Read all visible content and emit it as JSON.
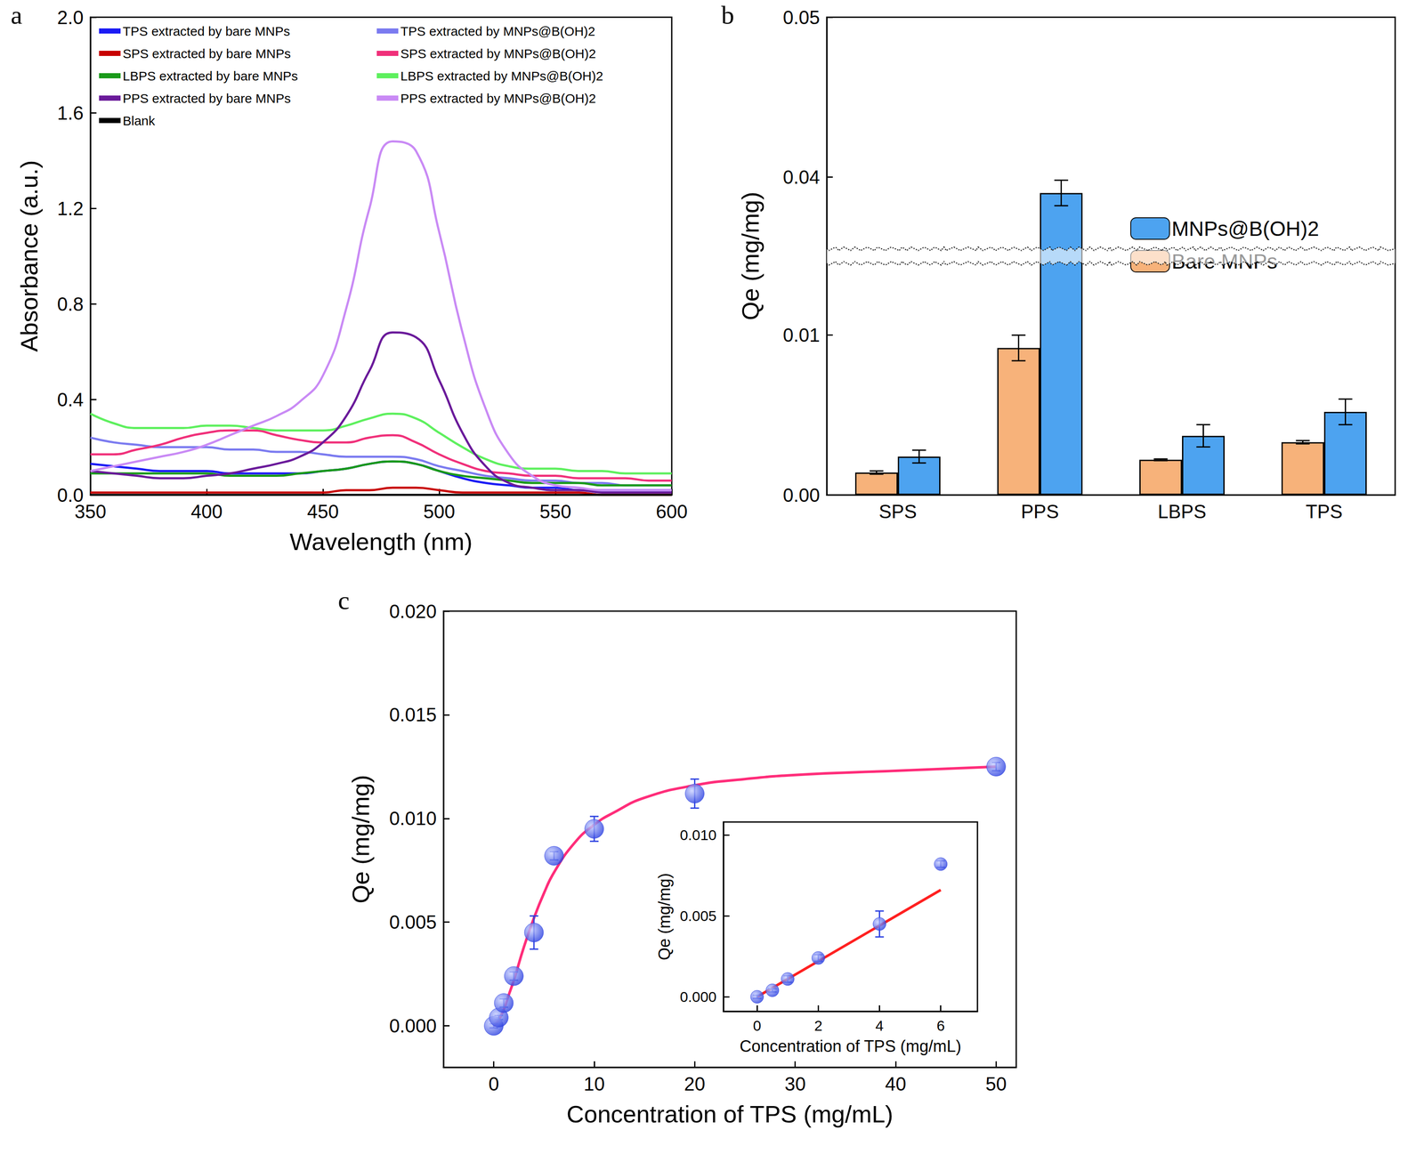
{
  "chart_data": [
    {
      "type": "line",
      "title": "a",
      "xlabel": "Wavelength (nm)",
      "ylabel": "Absorbance (a.u.)",
      "xlim": [
        350,
        600
      ],
      "xticks": [
        350,
        400,
        450,
        500,
        550,
        600
      ],
      "ylim": [
        0,
        2
      ],
      "yticks": [
        {
          "value": 0,
          "label": "0.0"
        },
        {
          "value": 0.4,
          "label": "0.4"
        },
        {
          "value": 0.8,
          "label": "0.8"
        },
        {
          "value": 1.2,
          "label": "1.2"
        },
        {
          "value": 1.6,
          "label": "1.6"
        },
        {
          "value": 2,
          "label": "2.0"
        }
      ],
      "legend": "upper left",
      "grid": false,
      "x": [
        350,
        360,
        370,
        380,
        390,
        400,
        410,
        420,
        430,
        440,
        450,
        460,
        470,
        480,
        490,
        500,
        510,
        520,
        530,
        540,
        550,
        560,
        570,
        580,
        590,
        600
      ],
      "series": [
        {
          "name": "TPS extracted by bare MNPs",
          "color": "#1b1bf5",
          "values": [
            0.13,
            0.12,
            0.11,
            0.1,
            0.1,
            0.1,
            0.09,
            0.09,
            0.09,
            0.09,
            0.1,
            0.11,
            0.13,
            0.14,
            0.13,
            0.1,
            0.07,
            0.05,
            0.04,
            0.03,
            0.03,
            0.02,
            0.02,
            0.02,
            0.02,
            0.02
          ]
        },
        {
          "name": "TPS extracted by MNPs@B(OH)2",
          "color": "#7b7bf0",
          "values": [
            0.24,
            0.22,
            0.21,
            0.2,
            0.2,
            0.2,
            0.19,
            0.19,
            0.18,
            0.18,
            0.17,
            0.16,
            0.16,
            0.16,
            0.15,
            0.12,
            0.1,
            0.08,
            0.07,
            0.06,
            0.06,
            0.05,
            0.05,
            0.04,
            0.04,
            0.04
          ]
        },
        {
          "name": "SPS extracted by bare MNPs",
          "color": "#c80000",
          "values": [
            0.01,
            0.01,
            0.01,
            0.01,
            0.01,
            0.01,
            0.01,
            0.01,
            0.01,
            0.01,
            0.01,
            0.02,
            0.02,
            0.03,
            0.03,
            0.02,
            0.01,
            0.01,
            0.01,
            0.01,
            0.01,
            0.01,
            0,
            0,
            0,
            0
          ]
        },
        {
          "name": "SPS extracted by MNPs@B(OH)2",
          "color": "#f0307a",
          "values": [
            0.17,
            0.17,
            0.19,
            0.21,
            0.24,
            0.26,
            0.27,
            0.27,
            0.25,
            0.23,
            0.22,
            0.22,
            0.24,
            0.25,
            0.22,
            0.17,
            0.13,
            0.1,
            0.09,
            0.08,
            0.08,
            0.07,
            0.07,
            0.07,
            0.06,
            0.06
          ]
        },
        {
          "name": "LBPS extracted by bare MNPs",
          "color": "#1a9a1a",
          "values": [
            0.09,
            0.09,
            0.09,
            0.09,
            0.09,
            0.09,
            0.08,
            0.08,
            0.08,
            0.09,
            0.1,
            0.11,
            0.13,
            0.14,
            0.13,
            0.1,
            0.08,
            0.07,
            0.06,
            0.05,
            0.05,
            0.05,
            0.04,
            0.04,
            0.04,
            0.04
          ]
        },
        {
          "name": "LBPS extracted by MNPs@B(OH)2",
          "color": "#5ef05e",
          "values": [
            0.34,
            0.3,
            0.28,
            0.28,
            0.28,
            0.29,
            0.29,
            0.28,
            0.27,
            0.27,
            0.27,
            0.29,
            0.32,
            0.34,
            0.32,
            0.26,
            0.2,
            0.15,
            0.12,
            0.11,
            0.11,
            0.1,
            0.1,
            0.09,
            0.09,
            0.09
          ]
        },
        {
          "name": "PPS extracted by bare MNPs",
          "color": "#6a1a9a",
          "values": [
            0.1,
            0.09,
            0.08,
            0.07,
            0.07,
            0.08,
            0.09,
            0.11,
            0.13,
            0.16,
            0.22,
            0.33,
            0.52,
            0.68,
            0.66,
            0.48,
            0.26,
            0.12,
            0.05,
            0.03,
            0.02,
            0.02,
            0.01,
            0.01,
            0.01,
            0.01
          ]
        },
        {
          "name": "PPS extracted by MNPs@B(OH)2",
          "color": "#c98af5",
          "values": [
            0.1,
            0.12,
            0.14,
            0.16,
            0.18,
            0.21,
            0.25,
            0.29,
            0.33,
            0.39,
            0.5,
            0.78,
            1.2,
            1.48,
            1.44,
            1.1,
            0.68,
            0.36,
            0.17,
            0.08,
            0.04,
            0.03,
            0.02,
            0.02,
            0.02,
            0.02
          ]
        },
        {
          "name": "Blank",
          "color": "#000000",
          "values": [
            0,
            0,
            0,
            0,
            0,
            0,
            0,
            0,
            0,
            0,
            0,
            0,
            0,
            0,
            0,
            0,
            0,
            0,
            0,
            0,
            0,
            0,
            0,
            0,
            0,
            0
          ]
        }
      ]
    },
    {
      "type": "bar",
      "title": "b",
      "ylabel": "Qe (mg/mg)",
      "categories": [
        "SPS",
        "PPS",
        "LBPS",
        "TPS"
      ],
      "ylim": [
        0,
        0.05
      ],
      "yticks": [
        {
          "value": 0,
          "label": "0.00"
        },
        {
          "value": 0.01,
          "label": "0.01"
        },
        {
          "value": 0.04,
          "label": "0.04"
        },
        {
          "value": 0.05,
          "label": "0.05"
        }
      ],
      "ybreak": [
        0.0145,
        0.0355
      ],
      "legend": "right",
      "grid": false,
      "series": [
        {
          "name": "MNPs@B(OH)2",
          "color": "#4da3f0",
          "values": [
            0.0024,
            0.039,
            0.0037,
            0.0052
          ],
          "errors": [
            0.0004,
            0.0008,
            0.0007,
            0.0008
          ]
        },
        {
          "name": "Bare MNPs",
          "color": "#f7b27a",
          "values": [
            0.0014,
            0.0092,
            0.0022,
            0.0033
          ],
          "errors": [
            0.0001,
            0.0008,
            5e-05,
            0.0001
          ]
        }
      ]
    },
    {
      "type": "scatter",
      "title": "c",
      "xlabel": "Concentration of TPS (mg/mL)",
      "ylabel": "Qe (mg/mg)",
      "xlim": [
        -5,
        52
      ],
      "xticks": [
        0,
        10,
        20,
        30,
        40,
        50
      ],
      "ylim": [
        -0.002,
        0.02
      ],
      "yticks": [
        {
          "value": 0,
          "label": "0.000"
        },
        {
          "value": 0.005,
          "label": "0.005"
        },
        {
          "value": 0.01,
          "label": "0.010"
        },
        {
          "value": 0.015,
          "label": "0.015"
        },
        {
          "value": 0.02,
          "label": "0.020"
        }
      ],
      "grid": false,
      "series": [
        {
          "type": "scatter",
          "color": "#2a3fe0",
          "marker": "circle",
          "x": [
            0,
            0.5,
            1,
            2,
            4,
            6,
            10,
            20,
            50
          ],
          "values": [
            0,
            0.0004,
            0.0011,
            0.0024,
            0.0045,
            0.0082,
            0.0095,
            0.0112,
            0.0125
          ],
          "errors": [
            0.0001,
            0.0001,
            0.0002,
            0.0002,
            0.0008,
            0.0002,
            0.0006,
            0.0007,
            0.0002
          ]
        },
        {
          "type": "line",
          "color": "#ff2d7a",
          "line_style": "solid",
          "x": [
            0,
            0.5,
            1,
            1.5,
            2,
            3,
            4,
            5,
            6,
            8,
            10,
            12,
            15,
            20,
            25,
            30,
            40,
            50
          ],
          "values": [
            0,
            0.0003,
            0.0008,
            0.0015,
            0.0022,
            0.0038,
            0.0052,
            0.0064,
            0.0074,
            0.0088,
            0.0097,
            0.0103,
            0.011,
            0.0116,
            0.0119,
            0.0121,
            0.0123,
            0.0125
          ]
        }
      ]
    },
    {
      "type": "scatter",
      "xlabel": "Concentration of TPS (mg/mL)",
      "ylabel": "Qe (mg/mg)",
      "xlim": [
        -1.1,
        7.2
      ],
      "xticks": [
        0,
        2,
        4,
        6
      ],
      "ylim": [
        -0.0009,
        0.0108
      ],
      "yticks": [
        {
          "value": 0,
          "label": "0.000"
        },
        {
          "value": 0.005,
          "label": "0.005"
        },
        {
          "value": 0.01,
          "label": "0.010"
        }
      ],
      "grid": false,
      "series": [
        {
          "type": "scatter",
          "color": "#2a3fe0",
          "marker": "circle",
          "x": [
            0,
            0.5,
            1,
            2,
            4,
            6
          ],
          "values": [
            0,
            0.0004,
            0.0011,
            0.0024,
            0.0045,
            0.0082
          ],
          "errors": [
            0.0001,
            0.0001,
            0.0002,
            0.0002,
            0.0008,
            0.0002
          ]
        },
        {
          "type": "line",
          "color": "#ff2020",
          "line_style": "solid",
          "x": [
            0,
            6
          ],
          "values": [
            0,
            0.0066
          ]
        }
      ]
    }
  ]
}
